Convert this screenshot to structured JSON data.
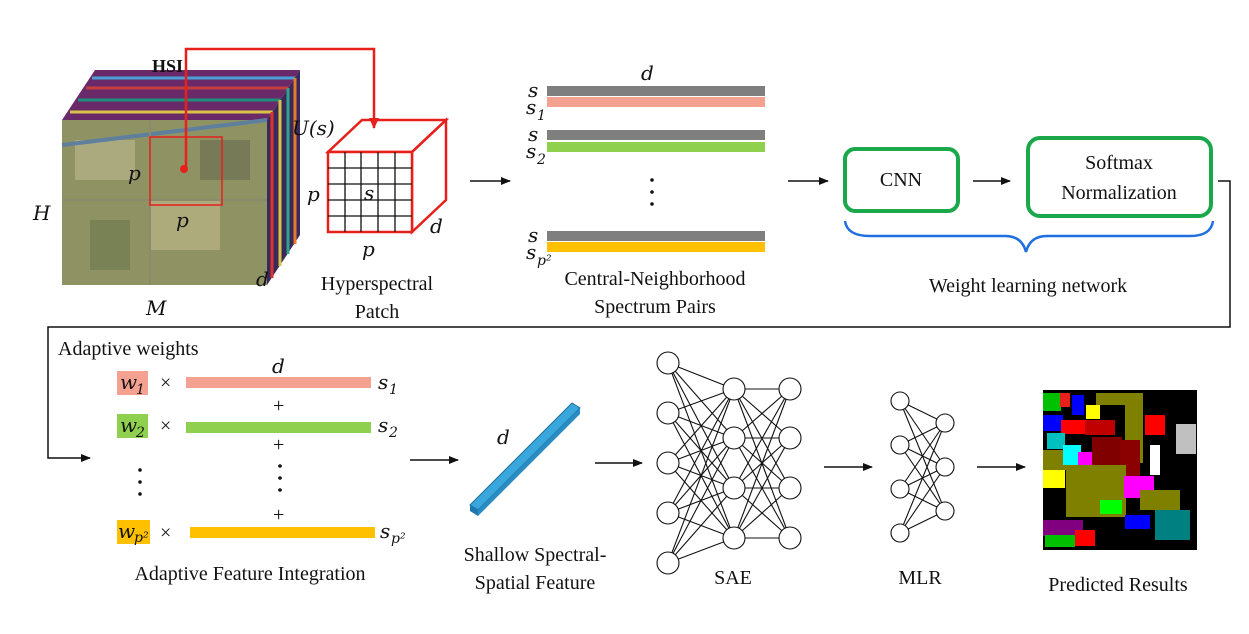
{
  "hsi": {
    "title": "HSI",
    "dim_h": "H",
    "dim_m": "M",
    "dim_d": "d",
    "dim_p1": "p",
    "dim_p2": "p"
  },
  "patch": {
    "u_label": "U(s)",
    "dim_p_left": "p",
    "dim_p_bottom": "p",
    "dim_d": "d",
    "center": "s",
    "caption_line1": "Hyperspectral",
    "caption_line2": "Patch"
  },
  "pairs": {
    "dim_d": "d",
    "rows": [
      {
        "center": "s",
        "neighbor": "s",
        "neighbor_sub": "1",
        "color": "#f4a192"
      },
      {
        "center": "s",
        "neighbor": "s",
        "neighbor_sub": "2",
        "color": "#8fd14f"
      },
      {
        "center": "s",
        "neighbor": "s",
        "neighbor_sub": "p²",
        "color": "#ffc000"
      }
    ],
    "caption_line1": "Central-Neighborhood",
    "caption_line2": "Spectrum Pairs"
  },
  "weight_net": {
    "cnn": "CNN",
    "softmax_line1": "Softmax",
    "softmax_line2": "Normalization",
    "caption": "Weight learning network",
    "box_color": "#1aa84a",
    "brace_color": "#1f6fe0"
  },
  "integration": {
    "header": "Adaptive weights",
    "dim_d": "d",
    "rows": [
      {
        "w": "w",
        "w_sub": "1",
        "times": "×",
        "s": "s",
        "s_sub": "1",
        "color": "#f4a192"
      },
      {
        "w": "w",
        "w_sub": "2",
        "times": "×",
        "s": "s",
        "s_sub": "2",
        "color": "#8fd14f"
      },
      {
        "w": "w",
        "w_sub": "p²",
        "times": "×",
        "s": "s",
        "s_sub": "p²",
        "color": "#ffc000"
      }
    ],
    "plus": "+",
    "caption": "Adaptive Feature Integration"
  },
  "feature": {
    "dim_d": "d",
    "caption_line1": "Shallow Spectral-",
    "caption_line2": "Spatial Feature",
    "color": "#3aa7dc"
  },
  "sae": {
    "caption": "SAE"
  },
  "mlr": {
    "caption": "MLR"
  },
  "result": {
    "caption": "Predicted Results"
  },
  "colors": {
    "red": "#e8201c",
    "gray": "#7f7f7f"
  }
}
